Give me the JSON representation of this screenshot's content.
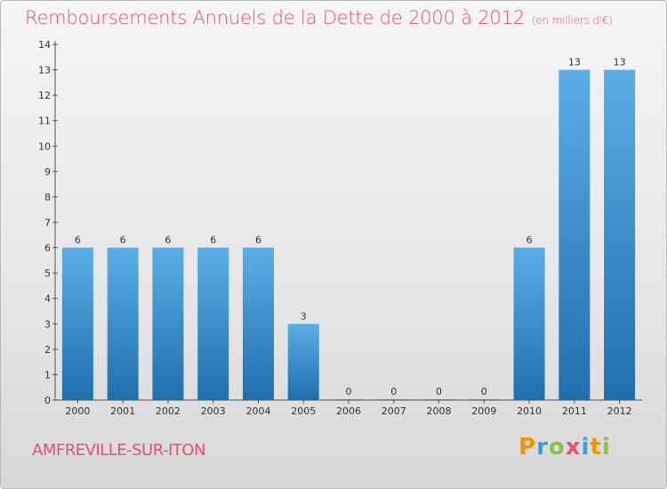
{
  "header": {
    "title": "Remboursements Annuels de la Dette de 2000 à 2012",
    "subtitle": "(en milliers d'€)"
  },
  "footer": {
    "commune": "AMFREVILLE-SUR-ITON",
    "logo": [
      "P",
      "r",
      "o",
      "x",
      "i",
      "t",
      "i"
    ]
  },
  "colors": {
    "title": "#e4526e",
    "bar_top": "#5aaee6",
    "bar_bottom": "#1f6fae",
    "logo": [
      "#f29400",
      "#3aa0dc",
      "#8bc34a",
      "#e4526e",
      "#3aa0dc",
      "#f29400",
      "#8bc34a"
    ]
  },
  "chart_data": {
    "type": "bar",
    "title": "Remboursements Annuels de la Dette de 2000 à 2012",
    "subtitle": "(en milliers d'€)",
    "categories": [
      "2000",
      "2001",
      "2002",
      "2003",
      "2004",
      "2005",
      "2006",
      "2007",
      "2008",
      "2009",
      "2010",
      "2011",
      "2012"
    ],
    "values": [
      6,
      6,
      6,
      6,
      6,
      3,
      0,
      0,
      0,
      0,
      6,
      13,
      13
    ],
    "data_labels": [
      "6",
      "6",
      "6",
      "6",
      "6",
      "3",
      "0",
      "0",
      "0",
      "0",
      "6",
      "13",
      "13"
    ],
    "ylim": [
      0,
      14
    ],
    "yticks": [
      0,
      1,
      2,
      3,
      4,
      5,
      6,
      7,
      8,
      9,
      10,
      11,
      12,
      13,
      14
    ],
    "grid": false,
    "legend": "none"
  }
}
